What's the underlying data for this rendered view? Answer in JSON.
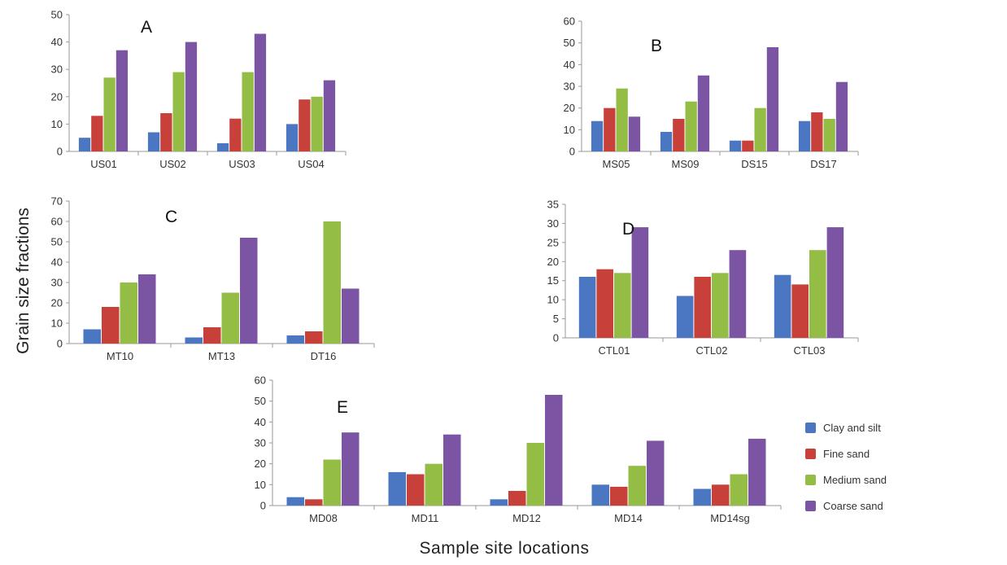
{
  "axis_labels": {
    "y": "Grain size fractions",
    "x": "Sample site locations"
  },
  "legend": [
    {
      "name": "Clay and silt",
      "color": "#4a76c2"
    },
    {
      "name": "Fine sand",
      "color": "#c8403a"
    },
    {
      "name": "Medium sand",
      "color": "#93bd45"
    },
    {
      "name": "Coarse sand",
      "color": "#7b54a3"
    }
  ],
  "chart_data": [
    {
      "type": "bar",
      "panel_label": "A",
      "categories": [
        "US01",
        "US02",
        "US03",
        "US04"
      ],
      "ylim": [
        0,
        50
      ],
      "yticks": [
        0,
        10,
        20,
        30,
        40,
        50
      ],
      "series": [
        {
          "name": "Clay and silt",
          "values": [
            5,
            7,
            3,
            10
          ]
        },
        {
          "name": "Fine sand",
          "values": [
            13,
            14,
            12,
            19
          ]
        },
        {
          "name": "Medium sand",
          "values": [
            27,
            29,
            29,
            20
          ]
        },
        {
          "name": "Coarse sand",
          "values": [
            37,
            40,
            43,
            26
          ]
        }
      ]
    },
    {
      "type": "bar",
      "panel_label": "B",
      "categories": [
        "MS05",
        "MS09",
        "DS15",
        "DS17"
      ],
      "ylim": [
        0,
        60
      ],
      "yticks": [
        0,
        10,
        20,
        30,
        40,
        50,
        60
      ],
      "series": [
        {
          "name": "Clay and silt",
          "values": [
            14,
            9,
            5,
            14
          ]
        },
        {
          "name": "Fine sand",
          "values": [
            20,
            15,
            5,
            18
          ]
        },
        {
          "name": "Medium sand",
          "values": [
            29,
            23,
            20,
            15
          ]
        },
        {
          "name": "Coarse sand",
          "values": [
            16,
            35,
            48,
            32
          ]
        }
      ]
    },
    {
      "type": "bar",
      "panel_label": "C",
      "categories": [
        "MT10",
        "MT13",
        "DT16"
      ],
      "ylim": [
        0,
        70
      ],
      "yticks": [
        0,
        10,
        20,
        30,
        40,
        50,
        60,
        70
      ],
      "series": [
        {
          "name": "Clay and silt",
          "values": [
            7,
            3,
            4
          ]
        },
        {
          "name": "Fine sand",
          "values": [
            18,
            8,
            6
          ]
        },
        {
          "name": "Medium sand",
          "values": [
            30,
            25,
            60
          ]
        },
        {
          "name": "Coarse sand",
          "values": [
            34,
            52,
            27
          ]
        }
      ]
    },
    {
      "type": "bar",
      "panel_label": "D",
      "categories": [
        "CTL01",
        "CTL02",
        "CTL03"
      ],
      "ylim": [
        0,
        35
      ],
      "yticks": [
        0,
        5,
        10,
        15,
        20,
        25,
        30,
        35
      ],
      "series": [
        {
          "name": "Clay and silt",
          "values": [
            16,
            11,
            16.5
          ]
        },
        {
          "name": "Fine sand",
          "values": [
            18,
            16,
            14
          ]
        },
        {
          "name": "Medium sand",
          "values": [
            17,
            17,
            23
          ]
        },
        {
          "name": "Coarse sand",
          "values": [
            29,
            23,
            29
          ]
        }
      ]
    },
    {
      "type": "bar",
      "panel_label": "E",
      "categories": [
        "MD08",
        "MD11",
        "MD12",
        "MD14",
        "MD14sg"
      ],
      "ylim": [
        0,
        60
      ],
      "yticks": [
        0,
        10,
        20,
        30,
        40,
        50,
        60
      ],
      "series": [
        {
          "name": "Clay and silt",
          "values": [
            4,
            16,
            3,
            10,
            8
          ]
        },
        {
          "name": "Fine sand",
          "values": [
            3,
            15,
            7,
            9,
            10
          ]
        },
        {
          "name": "Medium sand",
          "values": [
            22,
            20,
            30,
            19,
            15
          ]
        },
        {
          "name": "Coarse sand",
          "values": [
            35,
            34,
            53,
            31,
            32
          ]
        }
      ]
    }
  ]
}
